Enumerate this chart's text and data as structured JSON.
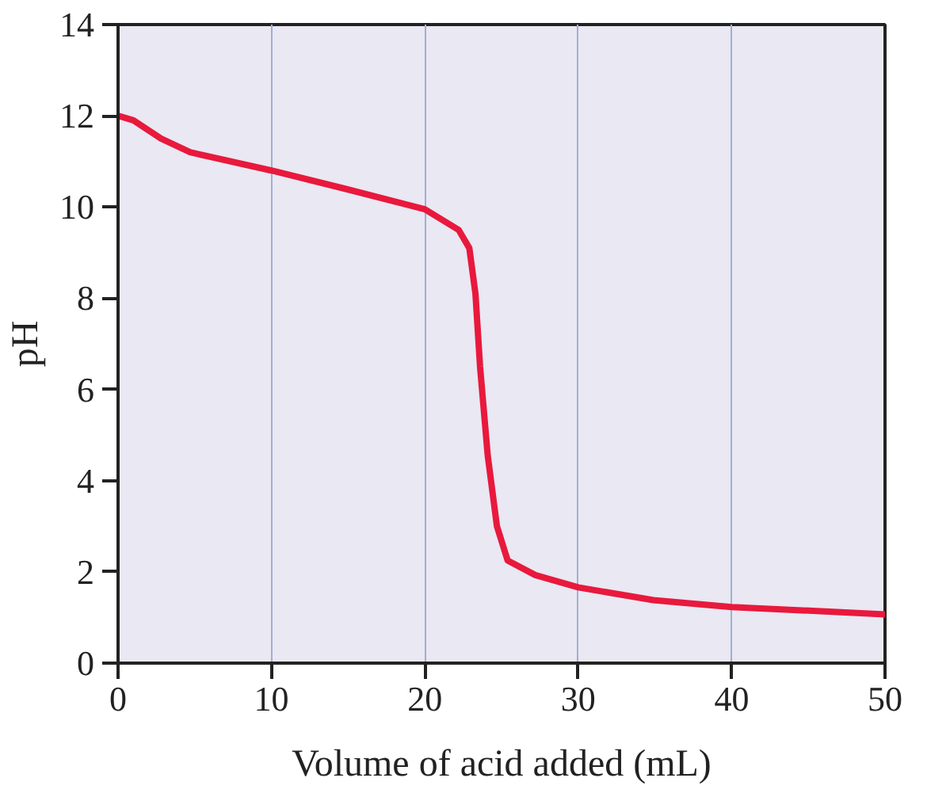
{
  "chart_data": {
    "type": "line",
    "xlabel": "Volume of acid added (mL)",
    "ylabel": "pH",
    "xlim": [
      0,
      50
    ],
    "xticks": [
      0,
      10,
      20,
      30,
      40,
      50
    ],
    "ylim": [
      0,
      14
    ],
    "yticks": [
      0,
      2,
      4,
      6,
      8,
      10,
      12,
      14
    ],
    "grid": "x",
    "marker": "none",
    "line_style": "solid",
    "series": [
      {
        "color": "#e8193c",
        "x": [
          0,
          1.0,
          2.8,
          4.7,
          10,
          14.8,
          20,
          22.2,
          22.9,
          23.3,
          23.6,
          24.1,
          24.7,
          25.4,
          27.2,
          30,
          34.9,
          40,
          50
        ],
        "values": [
          12.0,
          11.9,
          11.5,
          11.2,
          10.8,
          10.4,
          9.95,
          9.5,
          9.1,
          8.1,
          6.5,
          4.55,
          3.0,
          2.25,
          1.93,
          1.66,
          1.38,
          1.23,
          1.07
        ]
      }
    ]
  }
}
